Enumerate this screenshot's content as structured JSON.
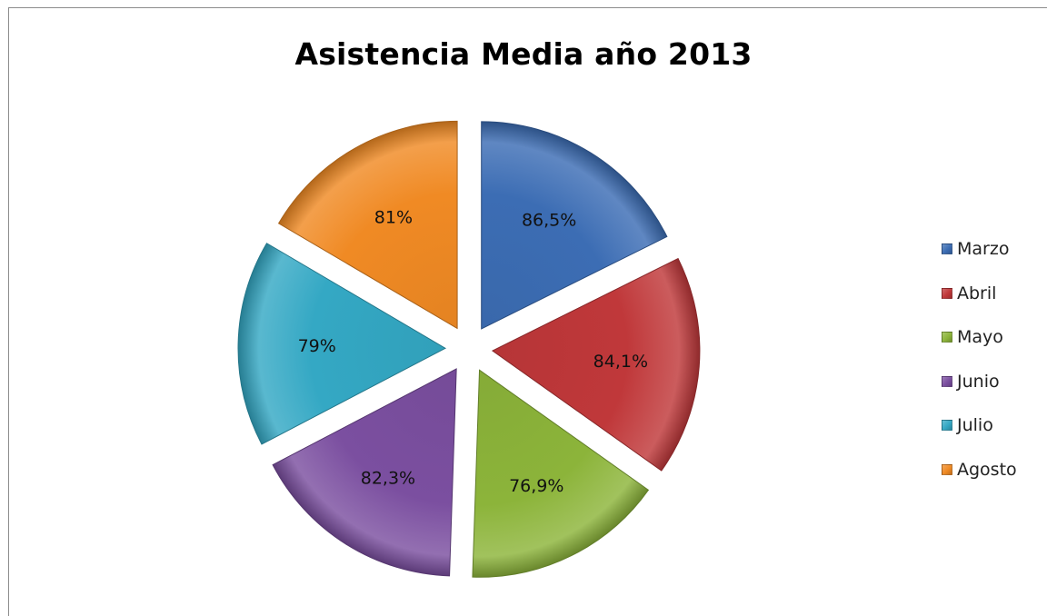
{
  "chart_data": {
    "type": "pie",
    "exploded": true,
    "title": "Asistencia Media año 2013",
    "categories": [
      "Marzo",
      "Abril",
      "Mayo",
      "Junio",
      "Julio",
      "Agosto"
    ],
    "values": [
      86.5,
      84.1,
      76.9,
      82.3,
      79,
      81
    ],
    "data_labels": [
      "86,5%",
      "84,1%",
      "76,9%",
      "82,3%",
      "79%",
      "81%"
    ],
    "colors": [
      "#3c6db4",
      "#c0383a",
      "#8cb43a",
      "#7b4fa0",
      "#34a8c4",
      "#f08a24"
    ],
    "legend_position": "right"
  }
}
